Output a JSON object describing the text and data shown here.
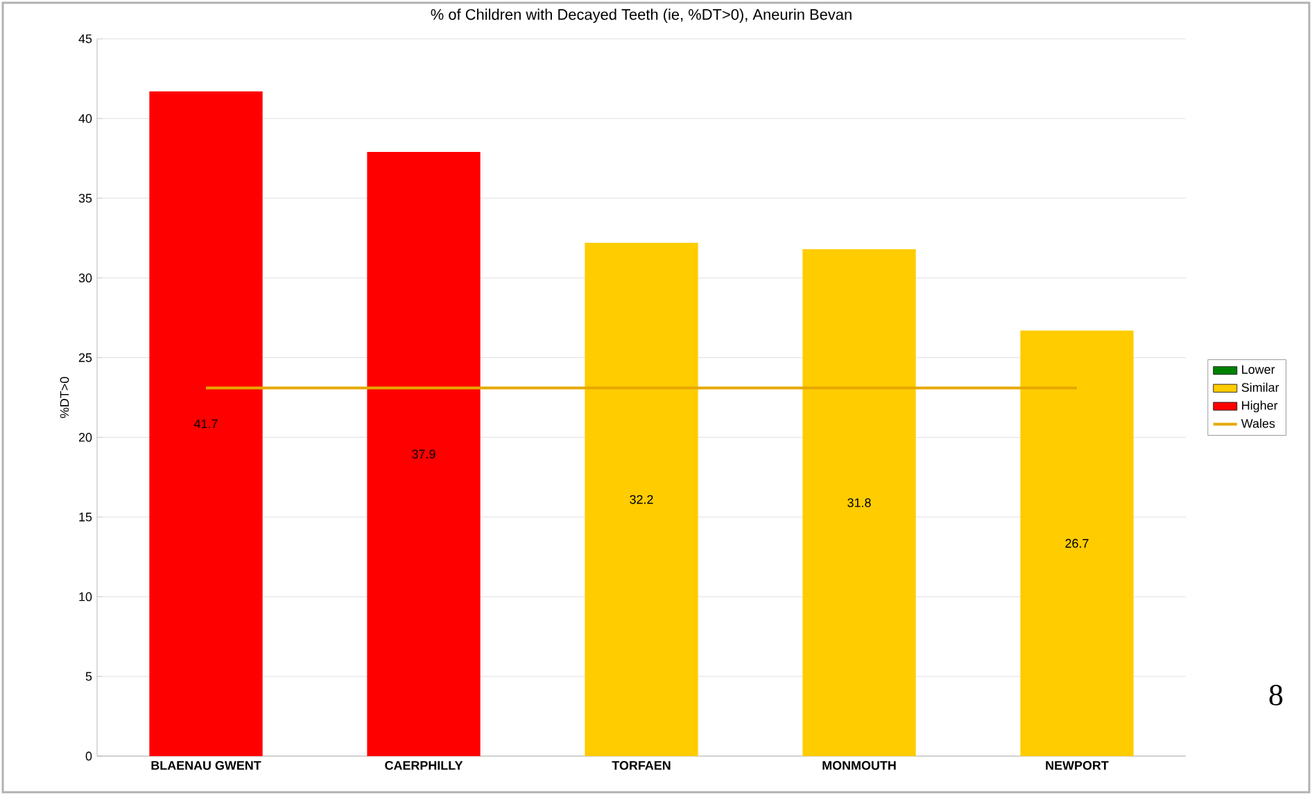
{
  "chart_data": {
    "type": "bar",
    "title": "% of Children with Decayed Teeth (ie, %DT>0), Aneurin Bevan",
    "ylabel": "%DT>0",
    "categories": [
      "BLAENAU GWENT",
      "CAERPHILLY",
      "TORFAEN",
      "MONMOUTH",
      "NEWPORT"
    ],
    "series": [
      {
        "name": "Lower",
        "color": "#008000",
        "values": [
          null,
          null,
          null,
          null,
          null
        ]
      },
      {
        "name": "Similar",
        "color": "#ffcc00",
        "values": [
          null,
          null,
          32.2,
          31.8,
          26.7
        ],
        "value_labels": [
          null,
          null,
          "32.2",
          "31.8",
          "26.7"
        ]
      },
      {
        "name": "Higher",
        "color": "#ff0000",
        "values": [
          41.7,
          37.9,
          null,
          null,
          null
        ],
        "value_labels": [
          "41.7",
          "37.9",
          null,
          null,
          null
        ]
      },
      {
        "name": "Wales",
        "type": "line",
        "color": "#e6a800",
        "values": [
          23.1,
          23.1,
          23.1,
          23.1,
          23.1
        ]
      }
    ],
    "stacked": true,
    "ylim": [
      0,
      45
    ],
    "yticks": [
      0,
      5,
      10,
      15,
      20,
      25,
      30,
      35,
      40,
      45
    ],
    "grid": "y",
    "legend": "right",
    "marker": "none",
    "annotations": [
      "8"
    ]
  }
}
